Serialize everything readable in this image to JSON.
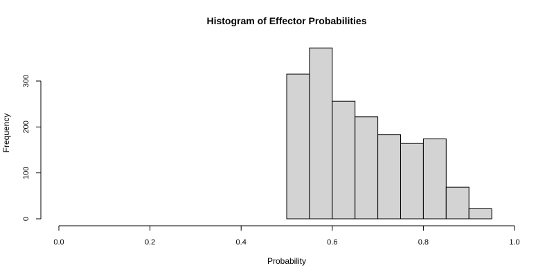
{
  "chart_data": {
    "type": "bar",
    "title": "Histogram of Effector Probabilities",
    "xlabel": "Probability",
    "ylabel": "Frequency",
    "xlim": [
      0.0,
      1.0
    ],
    "ylim": [
      0,
      380
    ],
    "x_ticks": [
      "0.0",
      "0.2",
      "0.4",
      "0.6",
      "0.8",
      "1.0"
    ],
    "y_ticks": [
      "0",
      "100",
      "200",
      "300"
    ],
    "grid": false,
    "bins": [
      {
        "start": 0.5,
        "end": 0.55,
        "count": 315
      },
      {
        "start": 0.55,
        "end": 0.6,
        "count": 372
      },
      {
        "start": 0.6,
        "end": 0.65,
        "count": 256
      },
      {
        "start": 0.65,
        "end": 0.7,
        "count": 222
      },
      {
        "start": 0.7,
        "end": 0.75,
        "count": 183
      },
      {
        "start": 0.75,
        "end": 0.8,
        "count": 164
      },
      {
        "start": 0.8,
        "end": 0.85,
        "count": 174
      },
      {
        "start": 0.85,
        "end": 0.9,
        "count": 69
      },
      {
        "start": 0.9,
        "end": 0.95,
        "count": 22
      }
    ],
    "colors": {
      "bar_fill": "#d3d3d3",
      "bar_stroke": "#000000"
    }
  }
}
